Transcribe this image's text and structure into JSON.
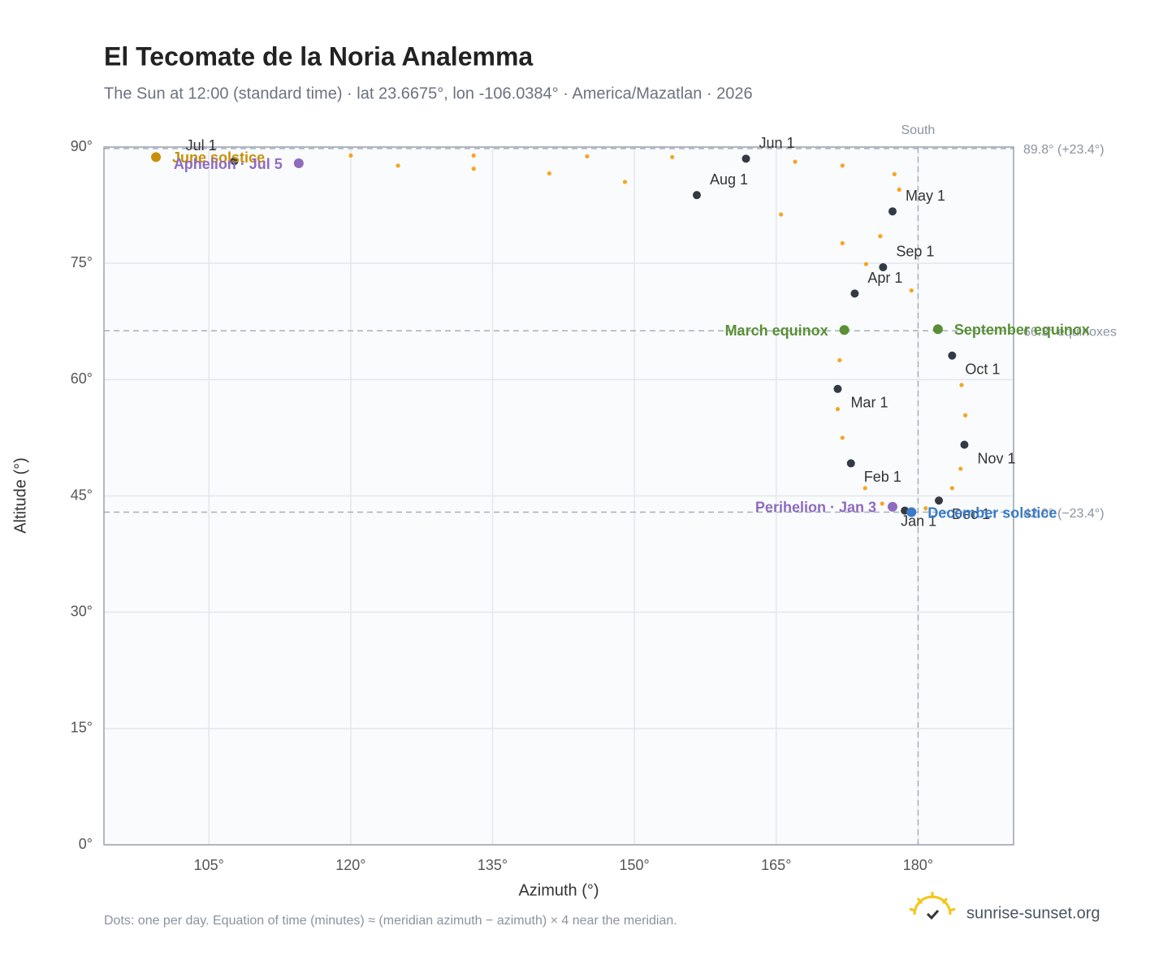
{
  "chart_data": {
    "type": "scatter",
    "title": "El Tecomate de la Noria Analemma",
    "subtitle": "The Sun at 12:00 (standard time) · lat 23.6675°, lon -106.0384° · America/Mazatlan · 2026",
    "x_label": "Azimuth (°)",
    "y_label": "Altitude (°)",
    "xlim": [
      93.9,
      190.1
    ],
    "ylim": [
      0,
      90
    ],
    "xticks": [
      {
        "value": 105,
        "label": "105°"
      },
      {
        "value": 120,
        "label": "120°"
      },
      {
        "value": 135,
        "label": "135°"
      },
      {
        "value": 150,
        "label": "150°"
      },
      {
        "value": 165,
        "label": "165°"
      },
      {
        "value": 180,
        "label": "180°"
      }
    ],
    "yticks": [
      {
        "value": 0,
        "label": "0°"
      },
      {
        "value": 15,
        "label": "15°"
      },
      {
        "value": 30,
        "label": "30°"
      },
      {
        "value": 45,
        "label": "45°"
      },
      {
        "value": 60,
        "label": "60°"
      },
      {
        "value": 75,
        "label": "75°"
      },
      {
        "value": 90,
        "label": "90°"
      }
    ],
    "grid": true,
    "meridian": {
      "value": 180,
      "label": "South"
    },
    "reference_lines": [
      {
        "value": 89.8,
        "label": "89.8° (+23.4°)"
      },
      {
        "value": 66.3,
        "label": "66.3° equinoxes"
      },
      {
        "value": 42.9,
        "label": "42.9° (−23.4°)"
      }
    ],
    "dots": {
      "color": "#f5a623",
      "x": [
        178.6,
        176.2,
        174.4,
        172.9,
        172.0,
        171.5,
        171.5,
        171.7,
        172.2,
        173.3,
        174.5,
        176.0,
        177.3,
        178.0,
        177.5,
        172.0,
        167.0,
        161.8,
        154.0,
        145.0,
        133.0,
        120.0,
        99.4,
        107.7,
        114.5,
        125.0,
        133.0,
        141.0,
        149.0,
        156.6,
        165.5,
        172.0,
        176.3,
        179.3,
        182.1,
        183.6,
        184.6,
        185.0,
        184.9,
        184.5,
        183.6,
        182.2,
        180.8,
        179.3,
        178.7
      ],
      "y": [
        43.1,
        44.0,
        46.0,
        49.2,
        52.5,
        56.2,
        58.8,
        62.5,
        66.4,
        71.1,
        74.9,
        78.5,
        81.7,
        84.5,
        86.5,
        87.6,
        88.1,
        88.5,
        88.7,
        88.8,
        88.9,
        88.9,
        88.7,
        88.2,
        87.9,
        87.6,
        87.2,
        86.6,
        85.5,
        83.8,
        81.3,
        77.6,
        74.5,
        71.5,
        66.5,
        63.1,
        59.3,
        55.4,
        51.6,
        48.5,
        46.0,
        44.4,
        43.4,
        42.9,
        43.0
      ]
    },
    "month_markers": {
      "color": "#333a45",
      "labels": [
        "Jan 1",
        "Feb 1",
        "Mar 1",
        "Apr 1",
        "May 1",
        "Jun 1",
        "Jul 1",
        "Aug 1",
        "Sep 1",
        "Oct 1",
        "Nov 1",
        "Dec 1"
      ],
      "x": [
        178.6,
        172.9,
        171.5,
        173.3,
        177.3,
        161.8,
        107.7,
        156.6,
        176.3,
        183.6,
        184.9,
        182.2
      ],
      "y": [
        43.1,
        49.2,
        58.8,
        71.1,
        81.7,
        88.5,
        88.2,
        83.8,
        74.5,
        63.1,
        51.6,
        44.4
      ]
    },
    "events": [
      {
        "label": "June solstice",
        "color": "#c8900a",
        "x": 99.4,
        "y": 88.7
      },
      {
        "label": "Aphelion · Jul 5",
        "color": "#8e6bbf",
        "x": 114.5,
        "y": 87.9
      },
      {
        "label": "March equinox",
        "color": "#5a8f35",
        "x": 172.2,
        "y": 66.4
      },
      {
        "label": "September equinox",
        "color": "#5a8f35",
        "x": 182.1,
        "y": 66.5
      },
      {
        "label": "Perihelion · Jan 3",
        "color": "#8e6bbf",
        "x": 177.3,
        "y": 43.6
      },
      {
        "label": "December solstice",
        "color": "#3a7bc8",
        "x": 179.3,
        "y": 42.9
      }
    ],
    "footnote": "Dots: one per day. Equation of time (minutes) ≈ (meridian azimuth − azimuth) × 4 near the meridian.",
    "brand": "sunrise-sunset.org"
  }
}
